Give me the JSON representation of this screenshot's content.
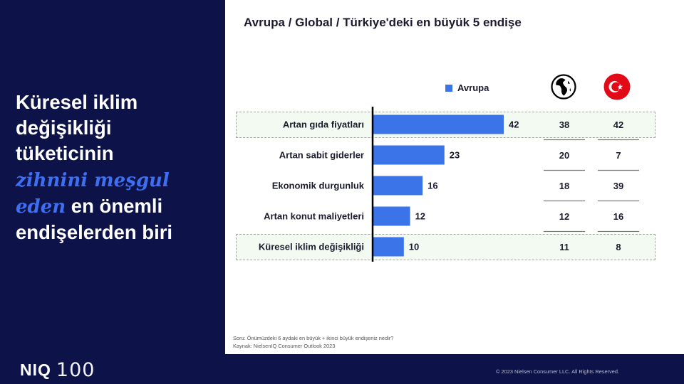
{
  "headline": {
    "line1": "Küresel iklim",
    "line2": "değişikliği",
    "line3": "tüketicinin",
    "emphasis1": "zihnini meşgul",
    "emphasis2": "eden",
    "line5_rest": " en önemli",
    "line6": "endişelerden biri"
  },
  "chart_data": {
    "type": "bar",
    "title": "Avrupa  / Global / Türkiye'deki en büyük 5 endişe",
    "legend": "Avrupa",
    "categories": [
      "Artan gıda fiyatları",
      "Artan sabit giderler",
      "Ekonomik durgunluk",
      "Artan konut maliyetleri",
      "Küresel iklim değişikliği"
    ],
    "series": [
      {
        "name": "Avrupa",
        "values": [
          42,
          23,
          16,
          12,
          10
        ]
      }
    ],
    "global_values": [
      38,
      20,
      18,
      12,
      11
    ],
    "turkey_values": [
      42,
      7,
      39,
      16,
      8
    ],
    "highlighted_categories": [
      "Artan gıda fiyatları",
      "Küresel iklim değişikliği"
    ],
    "xlim": [
      0,
      50
    ],
    "colors": {
      "bar": "#3b73e8",
      "highlight_border": "#7cc47c",
      "flag": "#e30a17"
    }
  },
  "footnote": {
    "line1": "Soru: Önümüzdeki  6 aydaki  en büyük  + ikinci büyük endişeniz  nedir?",
    "line2": "Kaynak:  NielsenIQ Consumer Outlook  2023"
  },
  "footer": {
    "copyright": "© 2023 Nielsen Consumer LLC. All Rights Reserved.",
    "logo_text": "NIQ",
    "logo_number": "100"
  }
}
